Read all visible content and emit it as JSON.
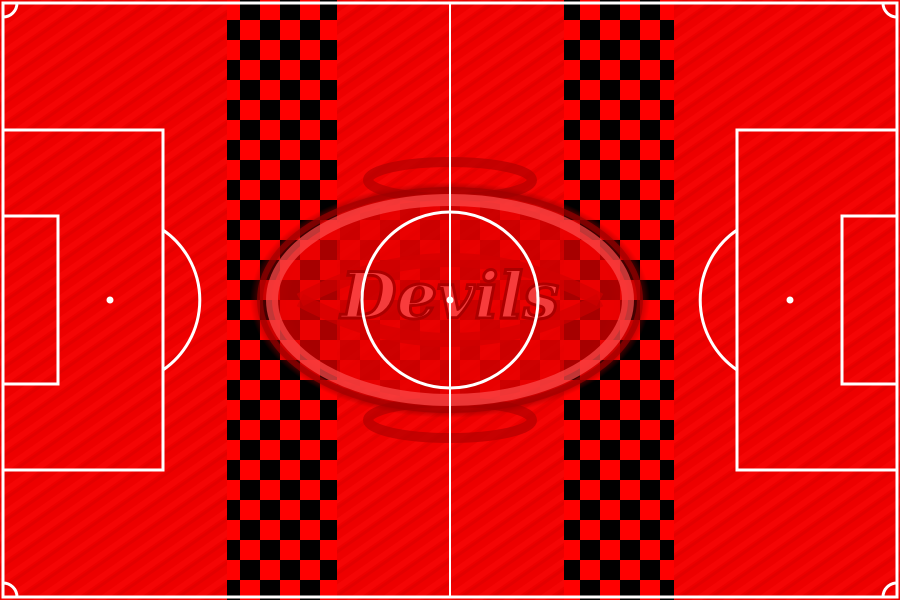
{
  "pitch": {
    "logo_text": "Devils",
    "colors": {
      "field": "#ee0000",
      "field_dark": "#c80000",
      "line": "#ffffff",
      "checker_dark": "#000000",
      "checker_light": "#ff0000",
      "logo_ring": "#b30000",
      "logo_fill": "#ff3333"
    },
    "markings": [
      "outer-boundary",
      "halfway-line",
      "center-circle",
      "center-spot",
      "left-penalty-area",
      "left-goal-area",
      "left-penalty-spot",
      "left-penalty-arc",
      "right-penalty-area",
      "right-goal-area",
      "right-penalty-spot",
      "right-penalty-arc",
      "corner-arcs"
    ],
    "decorations": [
      "left-checkered-stripe",
      "right-checkered-stripe",
      "center-club-emblem"
    ]
  }
}
